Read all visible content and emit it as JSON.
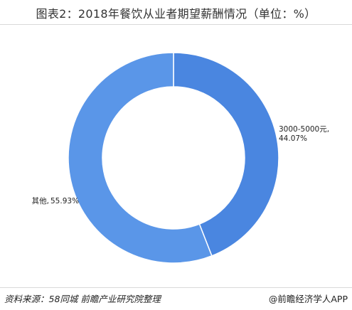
{
  "title": "图表2：2018年餐饮从业者期望薪酬情况（单位：%）",
  "footer": {
    "source": "资料来源：58同城 前瞻产业研究院整理",
    "brand": "@前瞻经济学人APP"
  },
  "colors": {
    "slice_a": "#4a86e0",
    "slice_b": "#5a96e8",
    "border": "#ffffff"
  },
  "chart_data": {
    "type": "pie",
    "donut": true,
    "slices": [
      {
        "label": "3000-5000元,",
        "value": 44.07,
        "value_text": "44.07%",
        "color": "#4a86e0"
      },
      {
        "label": "其他,",
        "value": 55.93,
        "value_text": "55.93%",
        "color": "#5a96e8"
      }
    ]
  }
}
